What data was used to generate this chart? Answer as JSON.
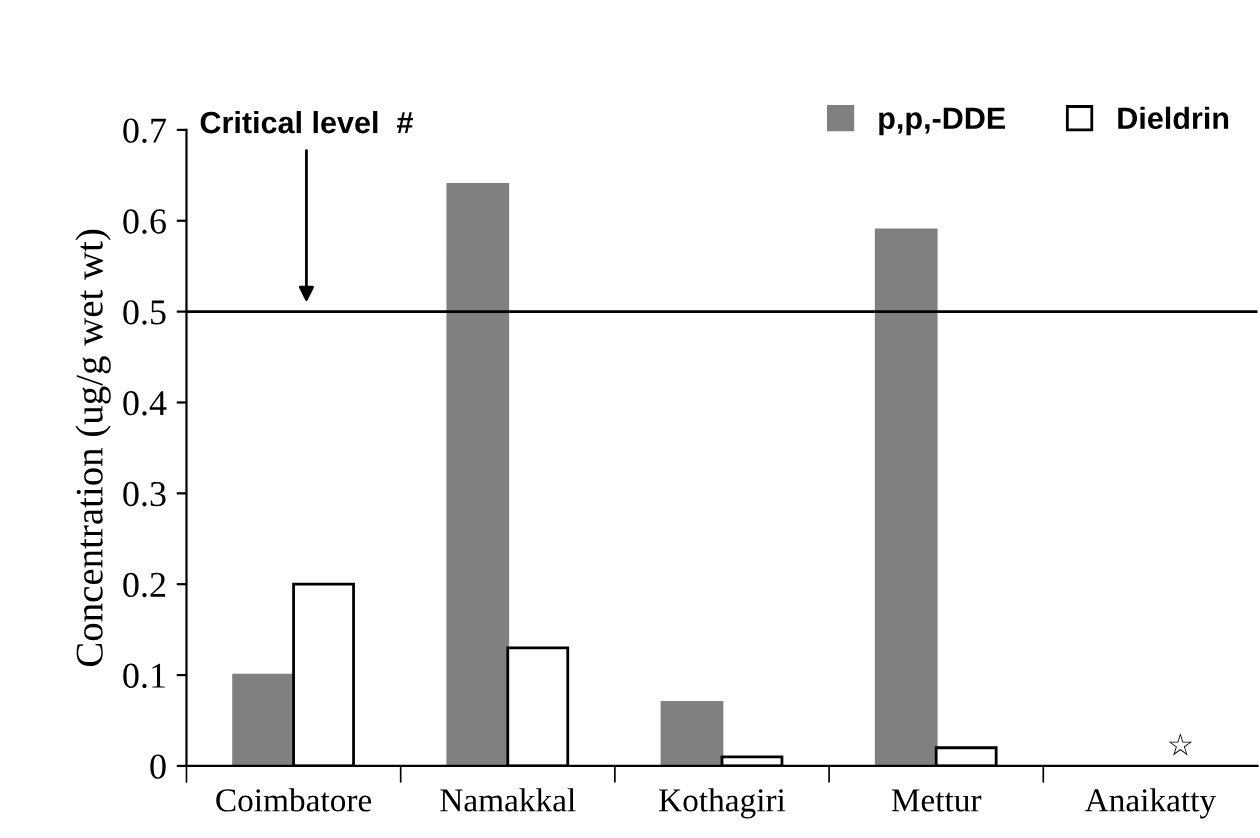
{
  "chart_data": {
    "type": "bar",
    "ylabel": "Concentration (ug/g wet wt)",
    "categories": [
      "Coimbatore",
      "Namakkal",
      "Kothagiri",
      "Mettur",
      "Anaikatty"
    ],
    "series": [
      {
        "name": "p,p,-DDE",
        "color": "#808080",
        "values": [
          0.1,
          0.64,
          0.07,
          0.59,
          null
        ]
      },
      {
        "name": "Dieldrin",
        "color": "#ffffff",
        "values": [
          0.2,
          0.13,
          0.01,
          0.02,
          null
        ]
      }
    ],
    "ylim": [
      0,
      0.7
    ],
    "yticks": [
      {
        "value": 0,
        "label": "0"
      },
      0.1,
      0.2,
      0.3,
      0.4,
      0.5,
      0.6,
      0.7
    ],
    "ref_lines": [
      {
        "axis": "y",
        "value": 0.5,
        "color": "#000000"
      }
    ],
    "annotations": [
      "Critical level  #",
      "☆"
    ],
    "legend": "top right",
    "grid": false
  }
}
